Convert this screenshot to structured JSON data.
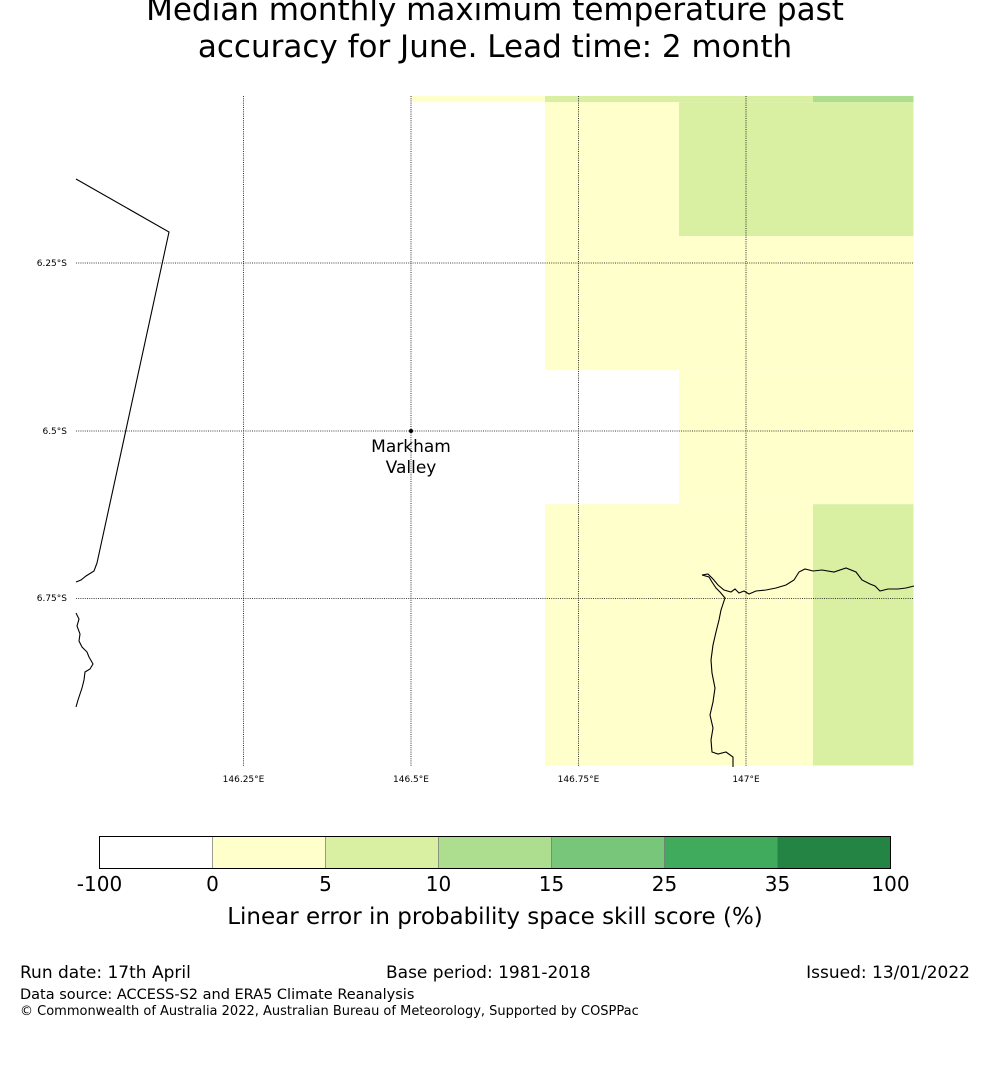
{
  "title": {
    "line1": "Median monthly maximum temperature past",
    "line2": "accuracy for June. Lead time: 2 month"
  },
  "map": {
    "lat_labels": [
      "6.25°S",
      "6.5°S",
      "6.75°S"
    ],
    "lon_labels": [
      "146.25°E",
      "146.5°E",
      "146.75°E",
      "147°E"
    ],
    "location": {
      "name_line1": "Markham",
      "name_line2": "Valley"
    },
    "grid_cells": [
      {
        "lon_min": 146.5,
        "lon_max": 146.7,
        "lat_max": -6.0,
        "lat_min": -6.01,
        "category": "0-5"
      },
      {
        "lon_min": 146.7,
        "lon_max": 146.9,
        "lat_max": -6.0,
        "lat_min": -6.01,
        "category": "5-10"
      },
      {
        "lon_min": 146.9,
        "lon_max": 147.1,
        "lat_max": -6.0,
        "lat_min": -6.01,
        "category": "5-10"
      },
      {
        "lon_min": 147.1,
        "lon_max": 147.25,
        "lat_max": -6.0,
        "lat_min": -6.01,
        "category": "10-15"
      },
      {
        "lon_min": 146.7,
        "lon_max": 146.9,
        "lat_max": -6.01,
        "lat_min": -6.41,
        "category": "0-5"
      },
      {
        "lon_min": 146.9,
        "lon_max": 147.25,
        "lat_max": -6.01,
        "lat_min": -6.21,
        "category": "5-10"
      },
      {
        "lon_min": 146.9,
        "lon_max": 147.25,
        "lat_max": -6.21,
        "lat_min": -6.41,
        "category": "0-5"
      },
      {
        "lon_min": 146.9,
        "lon_max": 147.25,
        "lat_max": -6.41,
        "lat_min": -6.61,
        "category": "0-5"
      },
      {
        "lon_min": 146.7,
        "lon_max": 147.1,
        "lat_max": -6.61,
        "lat_min": -7.0,
        "category": "0-5"
      },
      {
        "lon_min": 147.1,
        "lon_max": 147.25,
        "lat_max": -6.61,
        "lat_min": -7.0,
        "category": "5-10"
      }
    ]
  },
  "colorbar": {
    "bins": [
      {
        "label": "-100",
        "color": "#ffffff"
      },
      {
        "label": "0",
        "color": "#ffffcc"
      },
      {
        "label": "5",
        "color": "#d9f0a3"
      },
      {
        "label": "10",
        "color": "#addd8e"
      },
      {
        "label": "15",
        "color": "#78c679"
      },
      {
        "label": "25",
        "color": "#41ab5d"
      },
      {
        "label": "35",
        "color": "#238443"
      }
    ],
    "end_label": "100",
    "xlabel": "Linear error in probability space skill score (%)"
  },
  "footer": {
    "run_date": "Run date: 17th April",
    "base_period": "Base period: 1981-2018",
    "issued": "Issued: 13/01/2022",
    "data_source": "Data source: ACCESS-S2 and ERA5 Climate Reanalysis",
    "copyright": "© Commonwealth of Australia 2022, Australian Bureau of Meteorology, Supported by COSPPac"
  }
}
